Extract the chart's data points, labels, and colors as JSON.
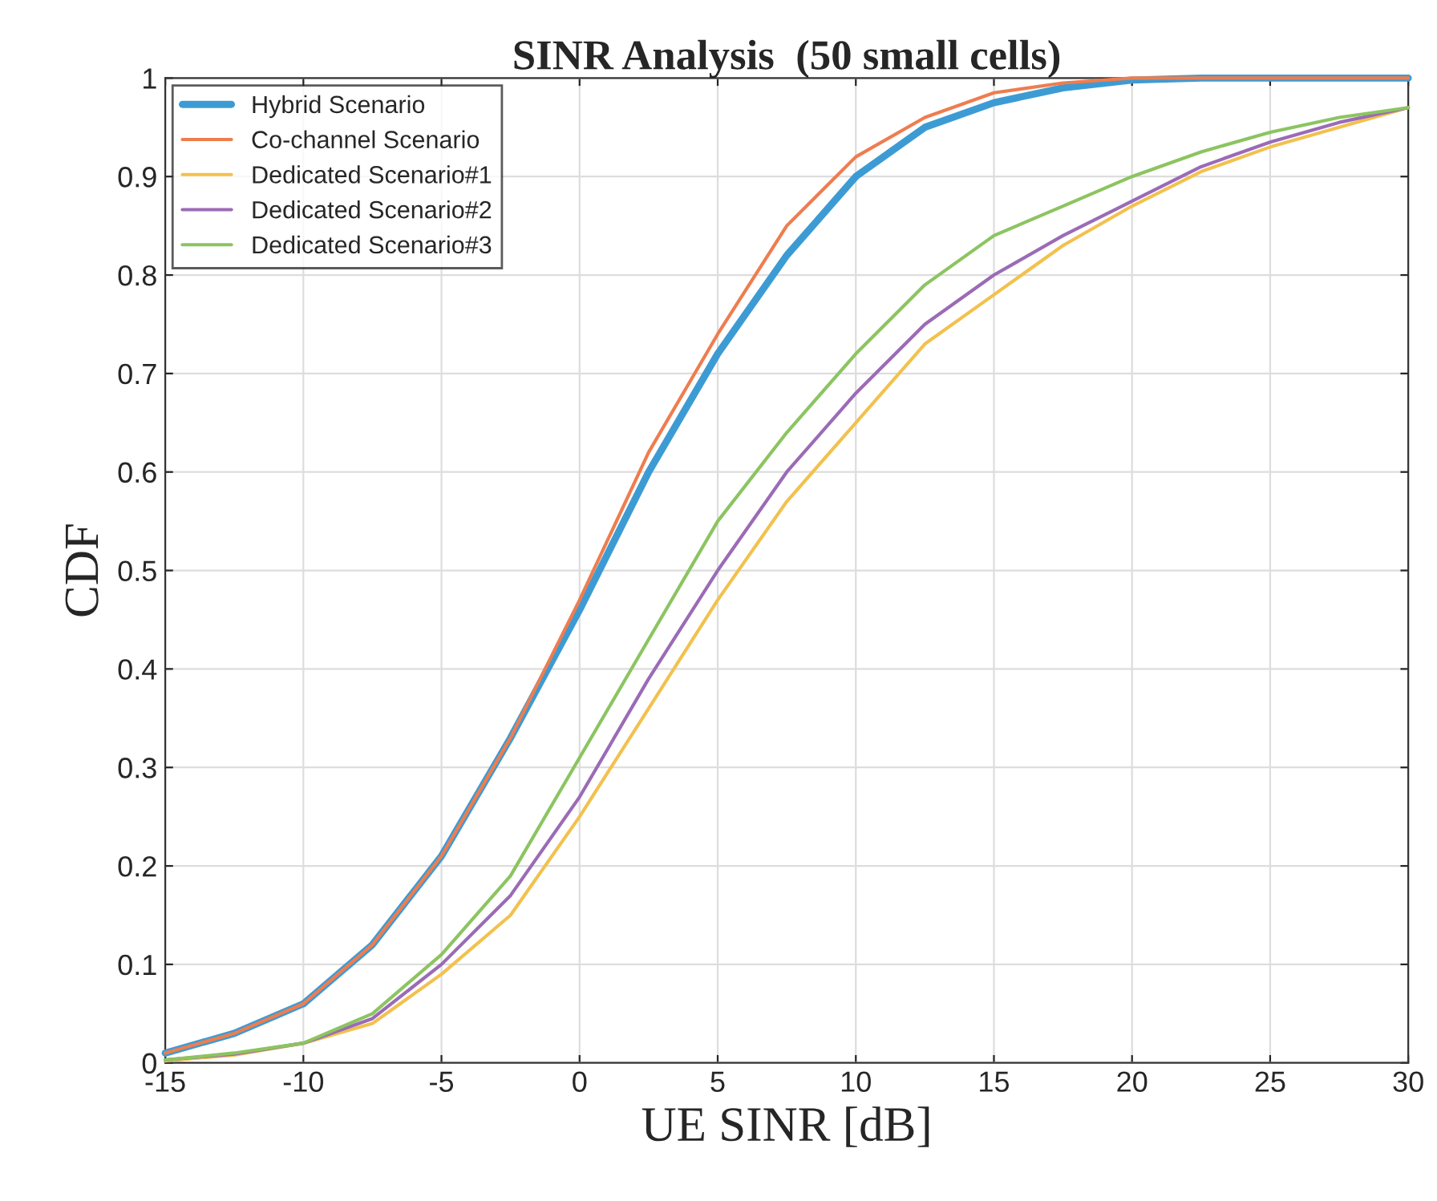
{
  "chart_data": {
    "type": "line",
    "title": "SINR Analysis  (50 small cells)",
    "xlabel": "UE SINR [dB]",
    "ylabel": "CDF",
    "x": [
      -15,
      -12.5,
      -10,
      -7.5,
      -5,
      -2.5,
      0,
      2.5,
      5,
      7.5,
      10,
      12.5,
      15,
      17.5,
      20,
      22.5,
      25,
      27.5,
      30
    ],
    "series": [
      {
        "name": "Hybrid Scenario",
        "color": "#3d9bd4",
        "values": [
          0.01,
          0.03,
          0.06,
          0.12,
          0.21,
          0.33,
          0.46,
          0.6,
          0.72,
          0.82,
          0.9,
          0.95,
          0.975,
          0.99,
          0.998,
          1,
          1,
          1,
          1
        ]
      },
      {
        "name": "Co-channel Scenario",
        "color": "#ee7d4f",
        "values": [
          0.01,
          0.03,
          0.06,
          0.12,
          0.21,
          0.33,
          0.47,
          0.62,
          0.74,
          0.85,
          0.92,
          0.96,
          0.985,
          0.995,
          1,
          1,
          1,
          1,
          1
        ]
      },
      {
        "name": "Dedicated Scenario#1",
        "color": "#f2c14e",
        "values": [
          0.002,
          0.008,
          0.02,
          0.04,
          0.09,
          0.15,
          0.25,
          0.36,
          0.47,
          0.57,
          0.65,
          0.73,
          0.78,
          0.83,
          0.87,
          0.905,
          0.93,
          0.95,
          0.97
        ]
      },
      {
        "name": "Dedicated Scenario#2",
        "color": "#9b6bb6",
        "values": [
          0.003,
          0.009,
          0.02,
          0.045,
          0.1,
          0.17,
          0.27,
          0.39,
          0.5,
          0.6,
          0.68,
          0.75,
          0.8,
          0.84,
          0.875,
          0.91,
          0.935,
          0.955,
          0.97
        ]
      },
      {
        "name": "Dedicated Scenario#3",
        "color": "#8cc461",
        "values": [
          0.003,
          0.01,
          0.02,
          0.05,
          0.11,
          0.19,
          0.31,
          0.43,
          0.55,
          0.64,
          0.72,
          0.79,
          0.84,
          0.87,
          0.9,
          0.925,
          0.945,
          0.96,
          0.97
        ]
      }
    ],
    "xlim": [
      -15,
      30
    ],
    "xticks": [
      -15,
      -10,
      -5,
      0,
      5,
      10,
      15,
      20,
      25,
      30
    ],
    "ylim": [
      0,
      1
    ],
    "yticks": [
      0,
      0.1,
      0.2,
      0.3,
      0.4,
      0.5,
      0.6,
      0.7,
      0.8,
      0.9,
      1
    ],
    "grid": true,
    "legend": "top left",
    "line_style": "solid",
    "marker": "none"
  }
}
